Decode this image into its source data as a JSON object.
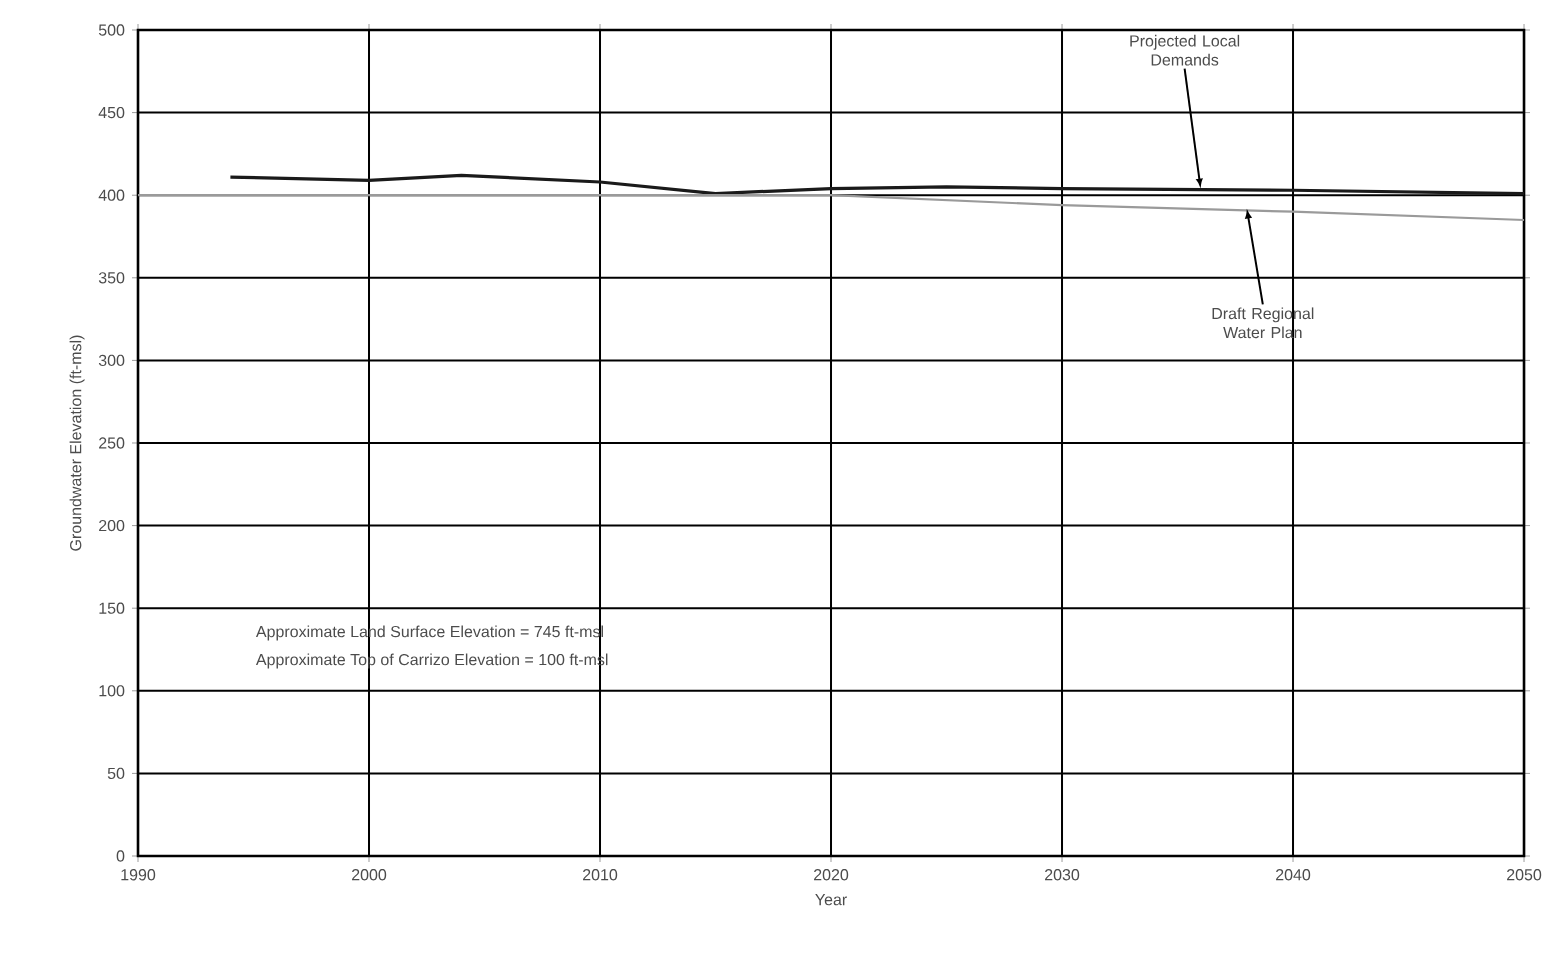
{
  "chart_data": {
    "type": "line",
    "xlabel": "Year",
    "ylabel": "Groundwater Elevation (ft-msl)",
    "xlim": [
      1990,
      2050
    ],
    "xticks": [
      1990,
      2000,
      2010,
      2020,
      2030,
      2040,
      2050
    ],
    "ylim": [
      0,
      500
    ],
    "yticks": [
      0,
      50,
      100,
      150,
      200,
      250,
      300,
      350,
      400,
      450,
      500
    ],
    "grid": true,
    "marker": "none",
    "line_style": "solid",
    "series": [
      {
        "color": "#1a1a1a",
        "x": [
          1994,
          2000,
          2004,
          2010,
          2015,
          2020,
          2025,
          2030,
          2040,
          2050
        ],
        "values": [
          411,
          409,
          412,
          408,
          401,
          404,
          405,
          404,
          403,
          401
        ]
      },
      {
        "color": "#9a9a9a",
        "x": [
          1990,
          2000,
          2010,
          2020,
          2030,
          2040,
          2050
        ],
        "values": [
          400,
          400,
          400,
          400,
          394,
          390,
          385
        ]
      }
    ],
    "annotations": [
      {
        "text": "Projected Local Demands",
        "x": 2036,
        "y": 404
      },
      {
        "text": "Draft Regional Water Plan",
        "x": 2038,
        "y": 392
      },
      "Approximate Land Surface Elevation = 745 ft-msl",
      "Approximate Top of Carrizo Elevation = 100 ft-msl"
    ]
  }
}
